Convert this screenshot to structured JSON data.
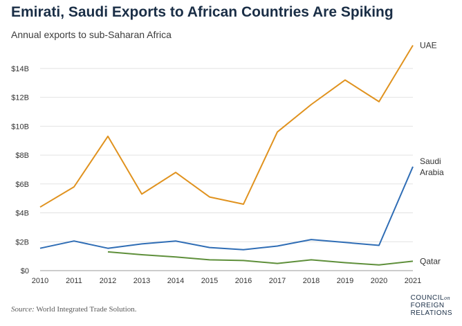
{
  "header": {
    "title": "Emirati, Saudi Exports to African Countries Are Spiking",
    "subtitle": "Annual exports to sub-Saharan Africa"
  },
  "footer": {
    "source_label": "Source:",
    "source_text": "World Integrated Trade Solution.",
    "logo": {
      "line1": "COUNCIL",
      "on": "on",
      "line2": "FOREIGN",
      "line3": "RELATIONS"
    }
  },
  "chart_data": {
    "type": "line",
    "title": "Emirati, Saudi Exports to African Countries Are Spiking",
    "subtitle": "Annual exports to sub-Saharan Africa",
    "xlabel": "",
    "ylabel": "",
    "x": [
      2010,
      2011,
      2012,
      2013,
      2014,
      2015,
      2016,
      2017,
      2018,
      2019,
      2020,
      2021
    ],
    "ylim": [
      0,
      15
    ],
    "yticks": [
      0,
      2,
      4,
      6,
      8,
      10,
      12,
      14
    ],
    "ytick_labels": [
      "$0",
      "$2B",
      "$4B",
      "$6B",
      "$8B",
      "$10B",
      "$12B",
      "$14B"
    ],
    "grid": true,
    "legend": "direct labels at right end of lines",
    "series": [
      {
        "name": "UAE",
        "label_lines": [
          "UAE"
        ],
        "color": "#e0921e",
        "values": [
          4.4,
          5.8,
          9.3,
          5.3,
          6.8,
          5.1,
          4.6,
          9.6,
          11.5,
          13.2,
          11.7,
          15.6
        ]
      },
      {
        "name": "Saudi Arabia",
        "label_lines": [
          "Saudi",
          "Arabia"
        ],
        "color": "#2f6db5",
        "values": [
          1.55,
          2.05,
          1.55,
          1.85,
          2.05,
          1.6,
          1.45,
          1.7,
          2.15,
          1.95,
          1.75,
          7.2
        ]
      },
      {
        "name": "Qatar",
        "label_lines": [
          "Qatar"
        ],
        "color": "#5e8f3a",
        "values": [
          null,
          null,
          1.3,
          1.1,
          0.95,
          0.75,
          0.7,
          0.5,
          0.75,
          0.55,
          0.4,
          0.65
        ]
      }
    ]
  }
}
